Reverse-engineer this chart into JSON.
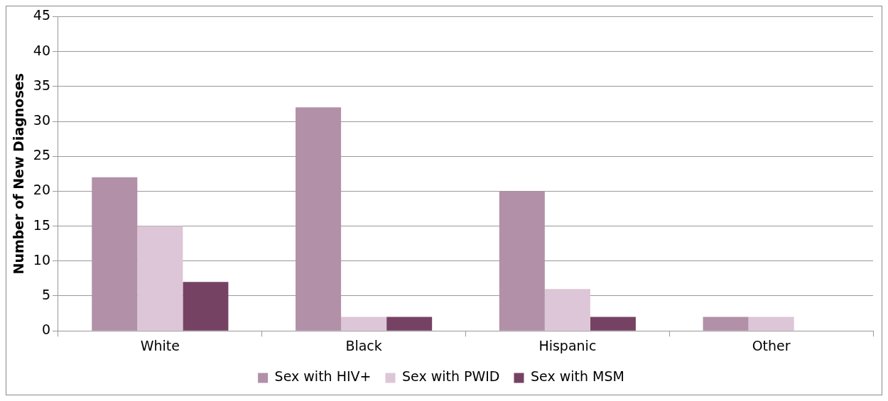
{
  "chart_data": {
    "type": "bar",
    "ylabel": "Number of New Diagnoses",
    "categories": [
      "White",
      "Black",
      "Hispanic",
      "Other"
    ],
    "series": [
      {
        "name": "Sex with HIV+",
        "color": "#b290a8",
        "values": [
          22,
          32,
          20,
          2
        ]
      },
      {
        "name": "Sex with PWID",
        "color": "#dcc6d7",
        "values": [
          15,
          2,
          6,
          2
        ]
      },
      {
        "name": "Sex with MSM",
        "color": "#764264",
        "values": [
          7,
          2,
          2,
          0
        ]
      }
    ],
    "ylim": [
      0,
      45
    ],
    "yticks": [
      0,
      5,
      10,
      15,
      20,
      25,
      30,
      35,
      40,
      45
    ],
    "grid": "y",
    "legend": "bottom"
  }
}
